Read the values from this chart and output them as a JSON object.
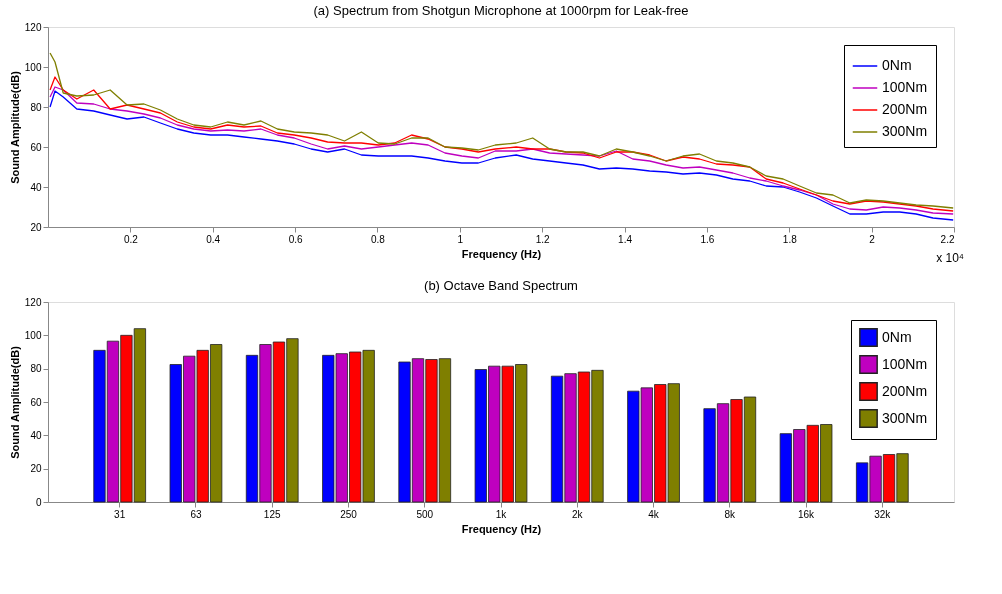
{
  "chart_data": [
    {
      "type": "line",
      "title": "(a) Spectrum from Shotgun Microphone at 1000rpm for Leak-free",
      "xlabel": "Frequency (Hz)",
      "ylabel": "Sound Amplitude(dB)",
      "annotations": [
        "x 10⁴"
      ],
      "x": [
        0.005,
        0.017,
        0.037,
        0.07,
        0.111,
        0.151,
        0.192,
        0.233,
        0.273,
        0.314,
        0.354,
        0.395,
        0.436,
        0.476,
        0.517,
        0.557,
        0.598,
        0.639,
        0.679,
        0.72,
        0.761,
        0.802,
        0.842,
        0.883,
        0.923,
        0.964,
        1.005,
        1.045,
        1.086,
        1.137,
        1.177,
        1.218,
        1.258,
        1.299,
        1.339,
        1.38,
        1.42,
        1.461,
        1.501,
        1.542,
        1.582,
        1.623,
        1.663,
        1.704,
        1.744,
        1.785,
        1.825,
        1.866,
        1.906,
        1.947,
        1.987,
        2.028,
        2.068,
        2.108,
        2.149,
        2.198
      ],
      "xlim": [
        0,
        2.2
      ],
      "xticks": [
        0.2,
        0.4,
        0.6,
        0.8,
        1,
        1.2,
        1.4,
        1.6,
        1.8,
        2,
        2.2
      ],
      "ylim": [
        20,
        120
      ],
      "yticks": [
        20,
        40,
        60,
        80,
        100,
        120
      ],
      "legend": "top right",
      "grid": false,
      "series": [
        {
          "name": "0Nm",
          "color": "#0000ff",
          "values": [
            80,
            88,
            85,
            79,
            78,
            76,
            74,
            75,
            72,
            69,
            67,
            66,
            66,
            65,
            64,
            63,
            61.5,
            59,
            57.5,
            59,
            56,
            55.5,
            55.5,
            55.5,
            54.5,
            53,
            52,
            52,
            54.5,
            56,
            54,
            53,
            52,
            51,
            49,
            49.5,
            49,
            48,
            47.5,
            46.5,
            47,
            46,
            44,
            43,
            40.5,
            40,
            37.5,
            34.5,
            30.5,
            26.5,
            26.5,
            27.5,
            27.5,
            26.5,
            24.5,
            23.5
          ]
        },
        {
          "name": "100Nm",
          "color": "#bf00bf",
          "values": [
            85,
            90,
            88.5,
            82,
            81.5,
            79,
            78,
            76.5,
            74.5,
            71,
            69,
            68,
            68.5,
            68,
            69,
            66,
            64.5,
            61.5,
            59,
            60.5,
            59,
            60,
            61,
            62,
            61,
            57,
            55.5,
            54.5,
            58,
            58,
            59,
            57,
            56.5,
            56,
            55.5,
            58,
            54,
            53,
            51,
            49.5,
            50,
            48.5,
            47,
            44.5,
            43,
            40.5,
            38.5,
            36,
            31.5,
            29,
            28.5,
            30,
            29.5,
            28.5,
            27,
            26.5
          ]
        },
        {
          "name": "200Nm",
          "color": "#ff0000",
          "values": [
            88.5,
            95,
            88.5,
            84,
            88.5,
            79,
            81,
            79,
            77,
            72.5,
            70,
            69,
            71,
            70,
            70.5,
            67,
            66,
            64.5,
            62.5,
            62,
            62,
            61,
            62,
            66,
            64,
            60,
            59,
            57.5,
            59,
            60,
            59,
            59,
            57.5,
            57,
            54.5,
            57.5,
            57.5,
            56,
            53,
            55,
            54,
            51.5,
            51,
            50,
            44,
            42,
            39,
            36,
            33,
            31.5,
            33,
            32.5,
            31.5,
            30.5,
            29,
            28
          ]
        },
        {
          "name": "300Nm",
          "color": "#7f7f00",
          "values": [
            107,
            102.5,
            87,
            85.5,
            86,
            88.5,
            81,
            81.5,
            78.5,
            74,
            71,
            70,
            72.5,
            71,
            73,
            69,
            67.5,
            67,
            66,
            63,
            67.5,
            62,
            61.5,
            64.5,
            64.5,
            60,
            59.5,
            58.5,
            61,
            62,
            64.5,
            59,
            57.5,
            57.5,
            55.5,
            59,
            57.5,
            55.5,
            53,
            55.5,
            56.5,
            53,
            52,
            50,
            45.5,
            44,
            40.5,
            37,
            36,
            32,
            33.5,
            33,
            32,
            31,
            30.5,
            29.5
          ]
        }
      ]
    },
    {
      "type": "bar",
      "title": "(b) Octave Band Spectrum",
      "xlabel": "Frequency (Hz)",
      "ylabel": "Sound Amplitude(dB)",
      "categories": [
        "31",
        "63",
        "125",
        "250",
        "500",
        "1k",
        "2k",
        "4k",
        "8k",
        "16k",
        "32k"
      ],
      "ylim": [
        0,
        120
      ],
      "yticks": [
        0,
        20,
        40,
        60,
        80,
        100,
        120
      ],
      "legend": "top right",
      "grid": false,
      "series": [
        {
          "name": "0Nm",
          "color": "#0000ff",
          "values": [
            91,
            82.5,
            88,
            88,
            84,
            79.5,
            75.5,
            66.5,
            56,
            41,
            23.5
          ]
        },
        {
          "name": "100Nm",
          "color": "#bf00bf",
          "values": [
            96.5,
            87.5,
            94.5,
            89,
            86,
            81.5,
            77,
            68.5,
            59,
            43.5,
            27.5
          ]
        },
        {
          "name": "200Nm",
          "color": "#ff0000",
          "values": [
            100,
            91,
            96,
            90,
            85.5,
            81.5,
            78,
            70.5,
            61.5,
            46,
            28.5
          ]
        },
        {
          "name": "300Nm",
          "color": "#7f7f00",
          "values": [
            104,
            94.5,
            98,
            91,
            86,
            82.5,
            79,
            71,
            63,
            46.5,
            29
          ]
        }
      ]
    }
  ]
}
